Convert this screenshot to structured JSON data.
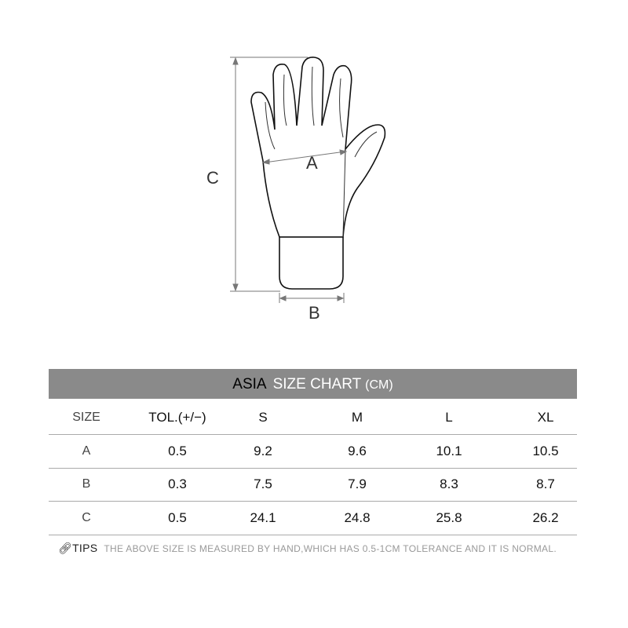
{
  "diagram": {
    "labels": {
      "a": "A",
      "b": "B",
      "c": "C"
    }
  },
  "chart": {
    "title_region": "ASIA",
    "title_main": "SIZE CHART",
    "title_unit": "(CM)",
    "headers": [
      "SIZE",
      "TOL.(+/−)",
      "S",
      "M",
      "L",
      "XL"
    ],
    "rows": [
      [
        "A",
        "0.5",
        "9.2",
        "9.6",
        "10.1",
        "10.5"
      ],
      [
        "B",
        "0.3",
        "7.5",
        "7.9",
        "8.3",
        "8.7"
      ],
      [
        "C",
        "0.5",
        "24.1",
        "24.8",
        "25.8",
        "26.2"
      ]
    ],
    "header_color": "#8a8a8a"
  },
  "tips": {
    "icon": "link-icon",
    "label": "TIPS",
    "text": "THE ABOVE SIZE IS MEASURED BY HAND,WHICH HAS 0.5-1CM TOLERANCE AND IT IS NORMAL."
  }
}
